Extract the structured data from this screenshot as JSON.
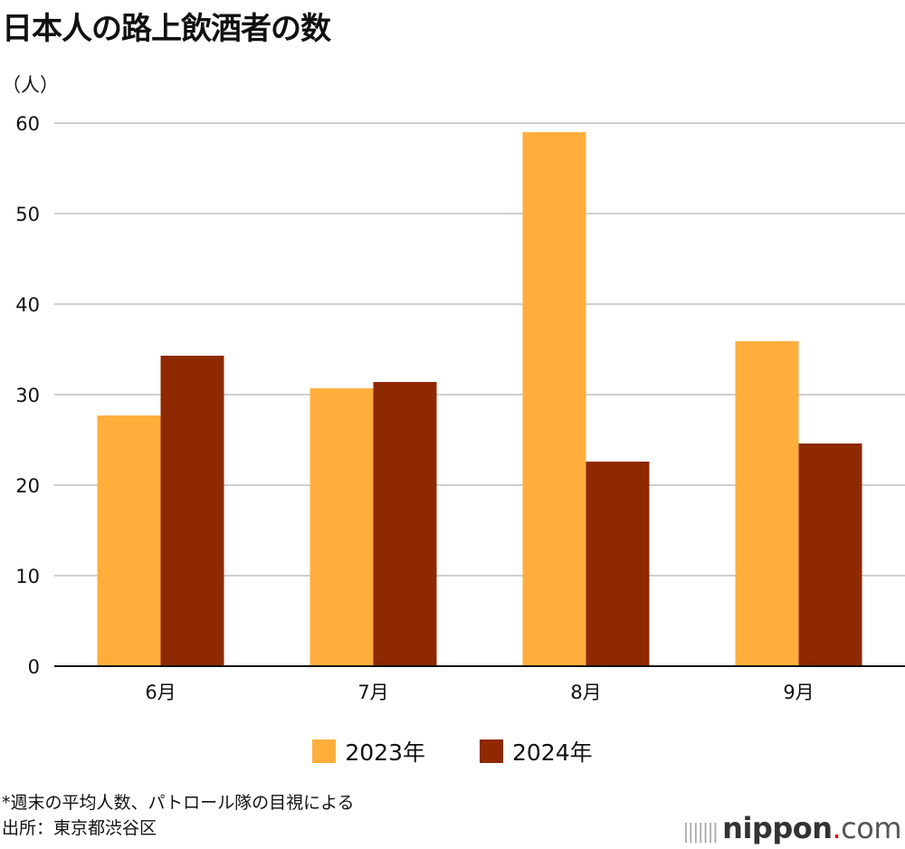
{
  "chart_data": {
    "type": "bar",
    "title": "日本人の路上飲酒者の数",
    "ylabel": "（人）",
    "xlabel": "",
    "categories": [
      "6月",
      "7月",
      "8月",
      "9月"
    ],
    "series": [
      {
        "name": "2023年",
        "values": [
          27.7,
          30.7,
          59.0,
          35.9
        ],
        "color": "#FFAE3B"
      },
      {
        "name": "2024年",
        "values": [
          34.3,
          31.4,
          22.6,
          24.6
        ],
        "color": "#8E2900"
      }
    ],
    "ylim": [
      0,
      60
    ],
    "yticks": [
      0,
      10,
      20,
      30,
      40,
      50,
      60
    ],
    "grid": true,
    "legend": "bottom"
  },
  "footnote": "*週末の平均人数、パトロール隊の目視による",
  "source": "出所：東京都渋谷区",
  "logo": {
    "name": "nippon",
    "dot": ".",
    "tld": "com"
  }
}
